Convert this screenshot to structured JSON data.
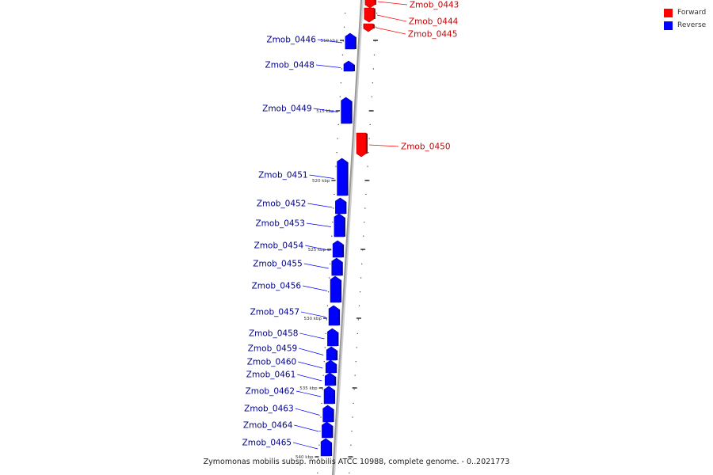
{
  "caption": "Zymomonas mobilis subsp. mobilis ATCC 10988, complete genome. - 0..2021773",
  "legend": {
    "forward": {
      "label": "Forward",
      "color": "#ff0000"
    },
    "reverse": {
      "label": "Reverse",
      "color": "#0000ff"
    }
  },
  "colors": {
    "forward_label": "#cc0000",
    "reverse_label": "#00008b",
    "axis": "#999999"
  },
  "genes": [
    {
      "name": "Zmob_0443",
      "strand": "forward"
    },
    {
      "name": "Zmob_0444",
      "strand": "forward"
    },
    {
      "name": "Zmob_0445",
      "strand": "forward"
    },
    {
      "name": "Zmob_0446",
      "strand": "reverse"
    },
    {
      "name": "Zmob_0448",
      "strand": "reverse"
    },
    {
      "name": "Zmob_0449",
      "strand": "reverse"
    },
    {
      "name": "Zmob_0450",
      "strand": "forward"
    },
    {
      "name": "Zmob_0451",
      "strand": "reverse"
    },
    {
      "name": "Zmob_0452",
      "strand": "reverse"
    },
    {
      "name": "Zmob_0453",
      "strand": "reverse"
    },
    {
      "name": "Zmob_0454",
      "strand": "reverse"
    },
    {
      "name": "Zmob_0455",
      "strand": "reverse"
    },
    {
      "name": "Zmob_0456",
      "strand": "reverse"
    },
    {
      "name": "Zmob_0457",
      "strand": "reverse"
    },
    {
      "name": "Zmob_0458",
      "strand": "reverse"
    },
    {
      "name": "Zmob_0459",
      "strand": "reverse"
    },
    {
      "name": "Zmob_0460",
      "strand": "reverse"
    },
    {
      "name": "Zmob_0461",
      "strand": "reverse"
    },
    {
      "name": "Zmob_0462",
      "strand": "reverse"
    },
    {
      "name": "Zmob_0463",
      "strand": "reverse"
    },
    {
      "name": "Zmob_0464",
      "strand": "reverse"
    },
    {
      "name": "Zmob_0465",
      "strand": "reverse"
    }
  ],
  "scale_marks": [
    "510 kbp",
    "515 kbp",
    "520 kbp",
    "525 kbp",
    "530 kbp",
    "535 kbp",
    "540 kbp"
  ]
}
